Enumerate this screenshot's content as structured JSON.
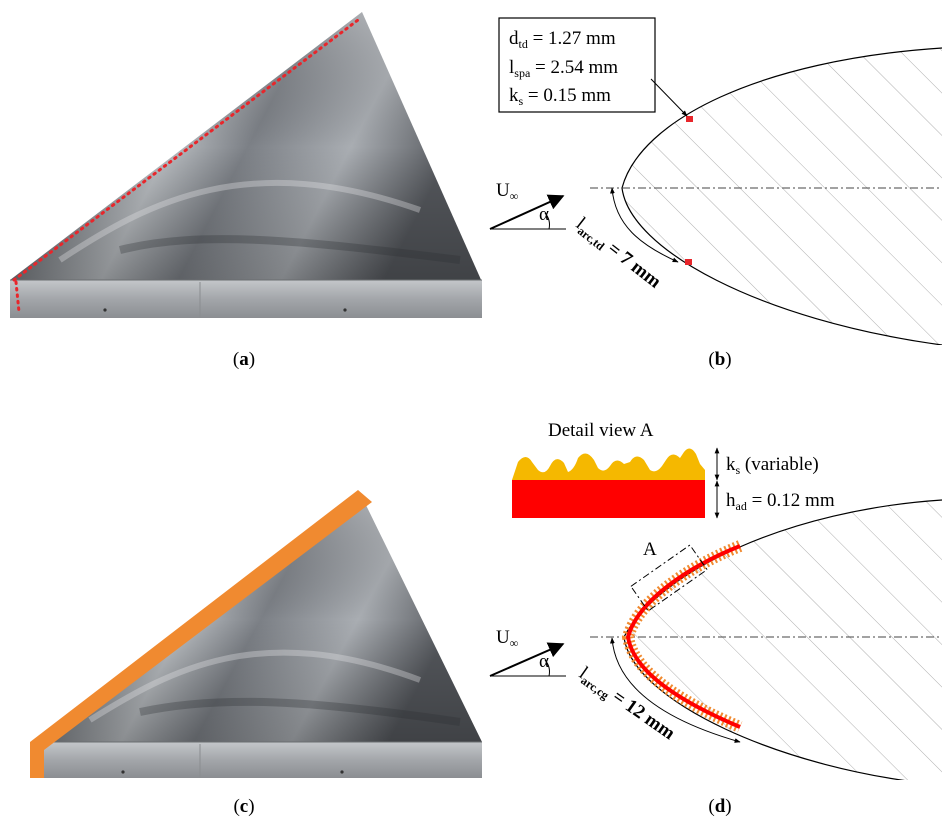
{
  "panels": {
    "a": {
      "caption_open": "(",
      "caption_letter": "a",
      "caption_close": ")"
    },
    "b": {
      "params": {
        "d_main": "d",
        "d_sub": "td",
        "d_value": " = 1.27 mm",
        "l_main": "l",
        "l_sub": "spa",
        "l_value": " = 2.54 mm",
        "k_main": "k",
        "k_sub": "s",
        "k_value": " = 0.15 mm"
      },
      "velocity_main": "U",
      "velocity_sub": "∞",
      "angle_symbol": "α",
      "arc_main": "l",
      "arc_sub": "arc,td",
      "arc_value": " = 7 mm",
      "caption_open": "(",
      "caption_letter": "b",
      "caption_close": ")"
    },
    "c": {
      "caption_open": "(",
      "caption_letter": "c",
      "caption_close": ")"
    },
    "d": {
      "detail_title": "Detail view A",
      "ks_main": "k",
      "ks_sub": "s",
      "ks_value": " (variable)",
      "had_main": "h",
      "had_sub": "ad",
      "had_value": " = 0.12 mm",
      "view_marker": "A",
      "velocity_main": "U",
      "velocity_sub": "∞",
      "angle_symbol": "α",
      "arc_main": "l",
      "arc_sub": "arc,cg",
      "arc_value": " = 12 mm",
      "caption_open": "(",
      "caption_letter": "d",
      "caption_close": ")"
    }
  },
  "colors": {
    "trip_dots": "#e8262b",
    "roughness_strip": "#f08a30",
    "adhesive_layer": "#ff0000",
    "grit": "#f5b800",
    "hatch": "#9a9a9a"
  }
}
